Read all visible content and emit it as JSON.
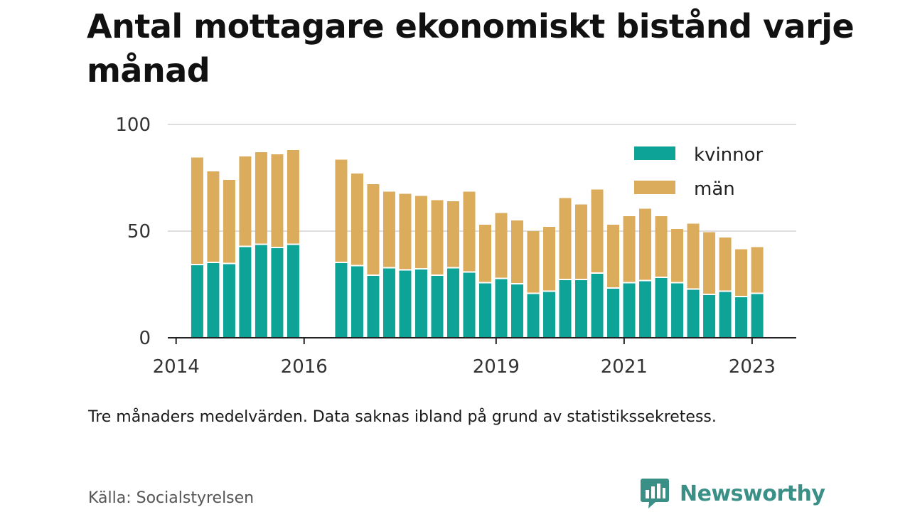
{
  "title": "Antal mottagare ekonomiskt bistånd varje månad",
  "note": "Tre månaders medelvärden. Data saknas ibland på grund av statistikssekretess.",
  "source": "Källa: Socialstyrelsen",
  "brand": {
    "name": "Newsworthy",
    "icon": "newsworthy-logo-icon",
    "color": "#3a8f86"
  },
  "chart_data": {
    "type": "bar",
    "stacked": true,
    "x_unit": "year",
    "x": [
      2014.33,
      2014.58,
      2014.83,
      2015.08,
      2015.33,
      2015.58,
      2015.83,
      2016.58,
      2016.83,
      2017.08,
      2017.33,
      2017.58,
      2017.83,
      2018.08,
      2018.33,
      2018.58,
      2018.83,
      2019.08,
      2019.33,
      2019.58,
      2019.83,
      2020.08,
      2020.33,
      2020.58,
      2020.83,
      2021.08,
      2021.33,
      2021.58,
      2021.83,
      2022.08,
      2022.33,
      2022.58,
      2022.83,
      2023.08
    ],
    "series": [
      {
        "name": "kvinnor",
        "color": "#0ea397",
        "values": [
          34,
          35,
          34.5,
          42.5,
          43.5,
          42,
          43.5,
          35,
          33.5,
          29,
          32.5,
          31.5,
          32,
          29,
          32.5,
          30.5,
          25.5,
          27.5,
          25,
          20.5,
          21.5,
          27,
          27,
          30,
          23,
          25.5,
          26.5,
          28,
          25.5,
          22.5,
          20,
          21.5,
          19,
          20.5
        ]
      },
      {
        "name": "män",
        "color": "#dbac5c",
        "values": [
          50.5,
          43,
          39.5,
          42.5,
          43.5,
          44,
          44.5,
          48.5,
          43.5,
          43,
          36,
          36,
          34.5,
          35.5,
          31.5,
          38,
          27.5,
          31,
          30,
          29.5,
          30.5,
          38.5,
          35.5,
          39.5,
          30,
          31.5,
          34,
          29,
          25.5,
          31,
          29.5,
          25.5,
          22.5,
          22
        ]
      }
    ],
    "xlim": [
      2013.87,
      2023.69
    ],
    "ylim": [
      0,
      100
    ],
    "y_ticks": [
      0,
      50,
      100
    ],
    "x_ticks": [
      2014,
      2016,
      2019,
      2021,
      2023
    ],
    "grid": true,
    "legend_position": "top-right",
    "xlabel": "",
    "ylabel": ""
  }
}
